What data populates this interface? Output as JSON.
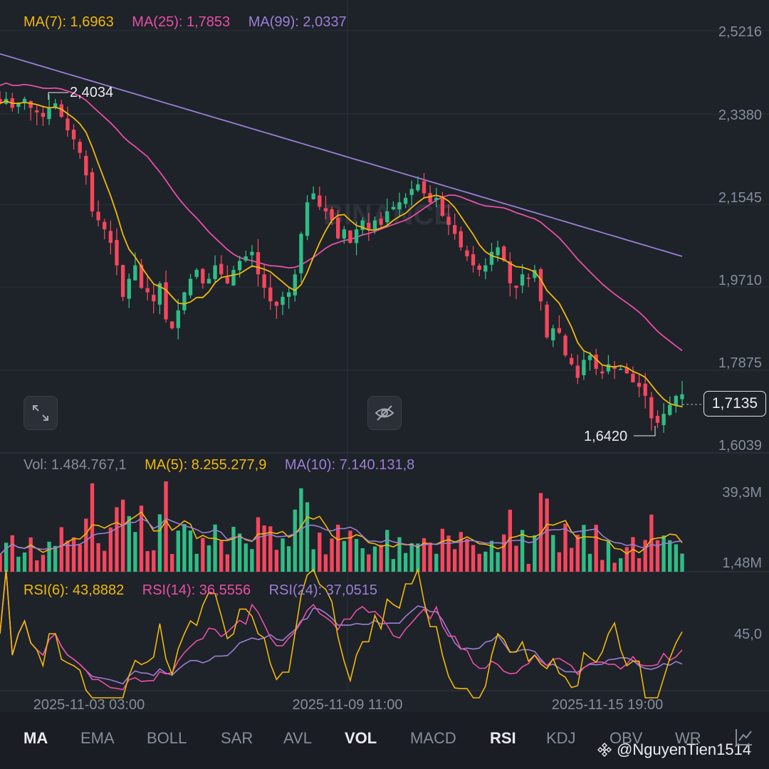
{
  "legend": {
    "ma7": "MA(7): 1,6963",
    "ma25": "MA(25): 1,7853",
    "ma99": "MA(99): 2,0337",
    "vol": "Vol: 1.484.767,1",
    "vol_ma5": "MA(5): 8.255.277,9",
    "vol_ma10": "MA(10): 7.140.131,8",
    "rsi6": "RSI(6): 43,8882",
    "rsi14": "RSI(14): 36,5556",
    "rsi24": "RSI(24): 37,0515"
  },
  "price_axis": [
    "2,5216",
    "2,3380",
    "2,1545",
    "1,9710",
    "1,7875",
    "1,6039"
  ],
  "volume_axis": [
    "39,3M",
    "1,48M"
  ],
  "rsi_axis": [
    "45,0"
  ],
  "time_axis": [
    "2025-11-03 03:00",
    "2025-11-09 11:00",
    "2025-11-15 19:00"
  ],
  "current_price": "1,7135",
  "high_label": "2,4034",
  "low_label": "1,6420",
  "watermark_text": "BINANCE",
  "tabs": [
    {
      "label": "MA",
      "active": true
    },
    {
      "label": "EMA",
      "active": false
    },
    {
      "label": "BOLL",
      "active": false
    },
    {
      "label": "SAR",
      "active": false
    },
    {
      "label": "AVL",
      "active": false
    },
    {
      "label": "VOL",
      "active": true
    },
    {
      "label": "MACD",
      "active": false
    },
    {
      "label": "RSI",
      "active": true
    },
    {
      "label": "KDJ",
      "active": false
    },
    {
      "label": "OBV",
      "active": false
    },
    {
      "label": "WR",
      "active": false
    }
  ],
  "user_handle": "@NguyenTien1514",
  "colors": {
    "up": "#2ebd85",
    "down": "#f6465d",
    "ma7": "#f0b90b",
    "ma25": "#e84fa6",
    "ma99": "#9b7fd4",
    "background": "#1e2229",
    "grid": "#2b3139"
  },
  "icons": [
    "expand-icon",
    "hide-eye-icon",
    "binance-logo-icon",
    "drawing-tool-icon"
  ],
  "chart_data": {
    "type": "candlestick",
    "price_range": [
      1.6039,
      2.5216
    ],
    "ohlc_close_approx": [
      2.36,
      2.37,
      2.35,
      2.36,
      2.37,
      2.35,
      2.34,
      2.33,
      2.35,
      2.36,
      2.33,
      2.3,
      2.28,
      2.25,
      2.2,
      2.12,
      2.1,
      2.08,
      2.05,
      2.0,
      1.93,
      1.97,
      2.0,
      1.95,
      1.94,
      1.92,
      1.96,
      1.88,
      1.86,
      1.9,
      1.94,
      1.97,
      1.99,
      1.96,
      1.97,
      2.0,
      1.98,
      1.96,
      1.99,
      2.01,
      2.02,
      2.03,
      1.98,
      1.95,
      1.92,
      1.91,
      1.93,
      1.94,
      1.98,
      2.07,
      2.14,
      2.16,
      2.13,
      2.12,
      2.1,
      2.06,
      2.08,
      2.05,
      2.08,
      2.1,
      2.08,
      2.1,
      2.09,
      2.12,
      2.13,
      2.14,
      2.15,
      2.17,
      2.18,
      2.16,
      2.14,
      2.15,
      2.11,
      2.09,
      2.07,
      2.04,
      2.02,
      2.0,
      1.99,
      2.0,
      2.03,
      2.04,
      2.01,
      1.96,
      1.95,
      1.98,
      1.97,
      1.99,
      1.92,
      1.84,
      1.86,
      1.85,
      1.8,
      1.78,
      1.75,
      1.79,
      1.8,
      1.77,
      1.76,
      1.78,
      1.77,
      1.77,
      1.76,
      1.74,
      1.73,
      1.71,
      1.66,
      1.65,
      1.67,
      1.69,
      1.71,
      1.7135
    ],
    "ma7_series_note": "MA(7) follows closes",
    "volume_range_M": [
      1.48,
      39.3
    ],
    "rsi_reference": 45.0
  }
}
